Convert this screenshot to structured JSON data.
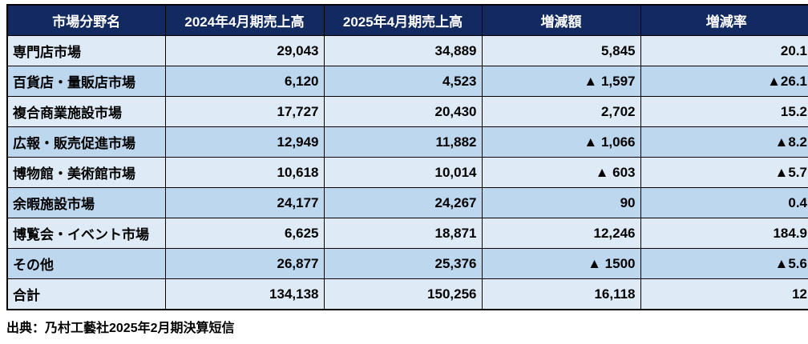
{
  "table": {
    "headers": [
      "市場分野名",
      "2024年4月期売上高",
      "2025年4月期売上高",
      "増減額",
      "増減率"
    ],
    "rows": [
      [
        "専門店市場",
        "29,043",
        "34,889",
        "5,845",
        "20.1"
      ],
      [
        "百貨店・量販店市場",
        "6,120",
        "4,523",
        "▲ 1,597",
        "▲26.1"
      ],
      [
        "複合商業施設市場",
        "17,727",
        "20,430",
        "2,702",
        "15.2"
      ],
      [
        "広報・販売促進市場",
        "12,949",
        "11,882",
        "▲ 1,066",
        "▲8.2"
      ],
      [
        "博物館・美術館市場",
        "10,618",
        "10,014",
        "▲ 603",
        "▲5.7"
      ],
      [
        "余暇施設市場",
        "24,177",
        "24,267",
        "90",
        "0.4"
      ],
      [
        "博覧会・イベント市場",
        "6,625",
        "18,871",
        "12,246",
        "184.9"
      ],
      [
        "その他",
        "26,877",
        "25,376",
        "▲ 1500",
        "▲5.6"
      ],
      [
        "合計",
        "134,138",
        "150,256",
        "16,118",
        "12"
      ]
    ],
    "colors": {
      "header_bg": "#122A60",
      "header_text": "#FFFFFF",
      "row_light": "#DEEBF7",
      "row_medium": "#BDD7EE",
      "border": "#000000"
    }
  },
  "footer": {
    "source": "出典：乃村工藝社2025年2月期決算短信"
  },
  "chart_data": {
    "type": "table",
    "title": "",
    "columns": [
      "市場分野名",
      "2024年4月期売上高",
      "2025年4月期売上高",
      "増減額",
      "増減率"
    ],
    "rows": [
      [
        "専門店市場",
        29043,
        34889,
        5845,
        20.1
      ],
      [
        "百貨店・量販店市場",
        6120,
        4523,
        -1597,
        -26.1
      ],
      [
        "複合商業施設市場",
        17727,
        20430,
        2702,
        15.2
      ],
      [
        "広報・販売促進市場",
        12949,
        11882,
        -1066,
        -8.2
      ],
      [
        "博物館・美術館市場",
        10618,
        10014,
        -603,
        -5.7
      ],
      [
        "余暇施設市場",
        24177,
        24267,
        90,
        0.4
      ],
      [
        "博覧会・イベント市場",
        6625,
        18871,
        12246,
        184.9
      ],
      [
        "その他",
        26877,
        25376,
        -1500,
        -5.6
      ],
      [
        "合計",
        134138,
        150256,
        16118,
        12
      ]
    ],
    "negative_marker": "▲",
    "note": "出典：乃村工藝社2025年2月期決算短信"
  }
}
